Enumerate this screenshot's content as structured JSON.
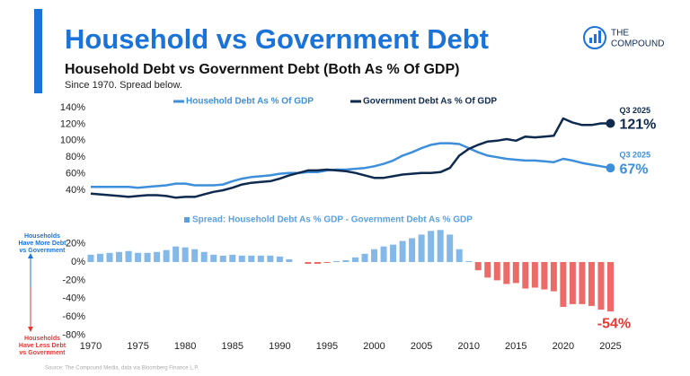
{
  "header": {
    "title": "Household vs Government Debt",
    "subtitle": "Household Debt vs Government Debt (Both As % Of GDP)",
    "note": "Since 1970. Spread below.",
    "logo": [
      "THE",
      "COMPOUND"
    ]
  },
  "side_notes": {
    "more": [
      "Households",
      "Have More Debt",
      "vs Government"
    ],
    "less": [
      "Households",
      "Have Less Debt",
      "vs Government"
    ]
  },
  "source": "Source: The Compound Media, data via Bloomberg Finance L.P.",
  "chart_data": [
    {
      "type": "line",
      "x": [
        1970,
        1971,
        1972,
        1973,
        1974,
        1975,
        1976,
        1977,
        1978,
        1979,
        1980,
        1981,
        1982,
        1983,
        1984,
        1985,
        1986,
        1987,
        1988,
        1989,
        1990,
        1991,
        1992,
        1993,
        1994,
        1995,
        1996,
        1997,
        1998,
        1999,
        2000,
        2001,
        2002,
        2003,
        2004,
        2005,
        2006,
        2007,
        2008,
        2009,
        2010,
        2011,
        2012,
        2013,
        2014,
        2015,
        2016,
        2017,
        2018,
        2019,
        2020,
        2021,
        2022,
        2023,
        2024,
        2025
      ],
      "xlim": [
        1970,
        2026
      ],
      "ylim": [
        30,
        145
      ],
      "yticks": [
        {
          "value": 40,
          "label": "40%"
        },
        {
          "value": 60,
          "label": "60%"
        },
        {
          "value": 80,
          "label": "80%"
        },
        {
          "value": 100,
          "label": "100%"
        },
        {
          "value": 120,
          "label": "120%"
        },
        {
          "value": 140,
          "label": "140%"
        }
      ],
      "series": [
        {
          "name": "Household Debt As % Of GDP",
          "color": "#3d8fdc",
          "last_date": "Q3 2025",
          "last_label": "67%",
          "values": [
            44,
            44,
            44,
            44,
            44,
            43,
            44,
            45,
            46,
            48,
            48,
            46,
            46,
            46,
            47,
            51,
            54,
            56,
            57,
            58,
            60,
            61,
            61,
            62,
            62,
            64,
            65,
            65,
            66,
            67,
            69,
            72,
            76,
            82,
            86,
            91,
            95,
            97,
            97,
            96,
            91,
            86,
            82,
            80,
            78,
            77,
            76,
            76,
            75,
            74,
            78,
            76,
            73,
            71,
            69,
            67
          ]
        },
        {
          "name": "Government Debt As % Of GDP",
          "color": "#0e2a4f",
          "last_date": "Q3 2025",
          "last_label": "121%",
          "values": [
            36,
            35,
            34,
            33,
            32,
            33,
            34,
            34,
            33,
            31,
            32,
            32,
            35,
            38,
            40,
            43,
            47,
            49,
            50,
            51,
            54,
            58,
            61,
            64,
            64,
            65,
            64,
            63,
            61,
            58,
            55,
            55,
            57,
            59,
            60,
            61,
            61,
            62,
            67,
            82,
            90,
            95,
            99,
            100,
            102,
            100,
            105,
            104,
            105,
            106,
            127,
            122,
            119,
            119,
            121,
            121
          ]
        }
      ]
    },
    {
      "type": "bar",
      "x": [
        1970,
        1971,
        1972,
        1973,
        1974,
        1975,
        1976,
        1977,
        1978,
        1979,
        1980,
        1981,
        1982,
        1983,
        1984,
        1985,
        1986,
        1987,
        1988,
        1989,
        1990,
        1991,
        1992,
        1993,
        1994,
        1995,
        1996,
        1997,
        1998,
        1999,
        2000,
        2001,
        2002,
        2003,
        2004,
        2005,
        2006,
        2007,
        2008,
        2009,
        2010,
        2011,
        2012,
        2013,
        2014,
        2015,
        2016,
        2017,
        2018,
        2019,
        2020,
        2021,
        2022,
        2023,
        2024,
        2025
      ],
      "xlim": [
        1970,
        2026
      ],
      "xticks": [
        1970,
        1975,
        1980,
        1985,
        1990,
        1995,
        2000,
        2005,
        2010,
        2015,
        2020,
        2025
      ],
      "ylim": [
        -82,
        40
      ],
      "yticks": [
        {
          "value": -80,
          "label": "-80%"
        },
        {
          "value": -60,
          "label": "-60%"
        },
        {
          "value": -40,
          "label": "-40%"
        },
        {
          "value": -20,
          "label": "-20%"
        },
        {
          "value": 0,
          "label": "0%"
        },
        {
          "value": 20,
          "label": "20%"
        }
      ],
      "series": [
        {
          "name": "Spread: Household Debt As % GDP - Government Debt As % GDP",
          "color": "#5aa0e0",
          "negative_color": "#e53935",
          "last_label": "-54%",
          "values": [
            8,
            9,
            10,
            11,
            12,
            10,
            10,
            11,
            13,
            17,
            16,
            14,
            11,
            8,
            7,
            8,
            7,
            7,
            7,
            7,
            6,
            3,
            0,
            -2,
            -2,
            -1,
            1,
            2,
            5,
            9,
            14,
            17,
            19,
            23,
            26,
            30,
            34,
            35,
            30,
            14,
            1,
            -9,
            -17,
            -20,
            -24,
            -23,
            -29,
            -28,
            -30,
            -32,
            -49,
            -46,
            -46,
            -48,
            -52,
            -54
          ]
        }
      ]
    }
  ]
}
